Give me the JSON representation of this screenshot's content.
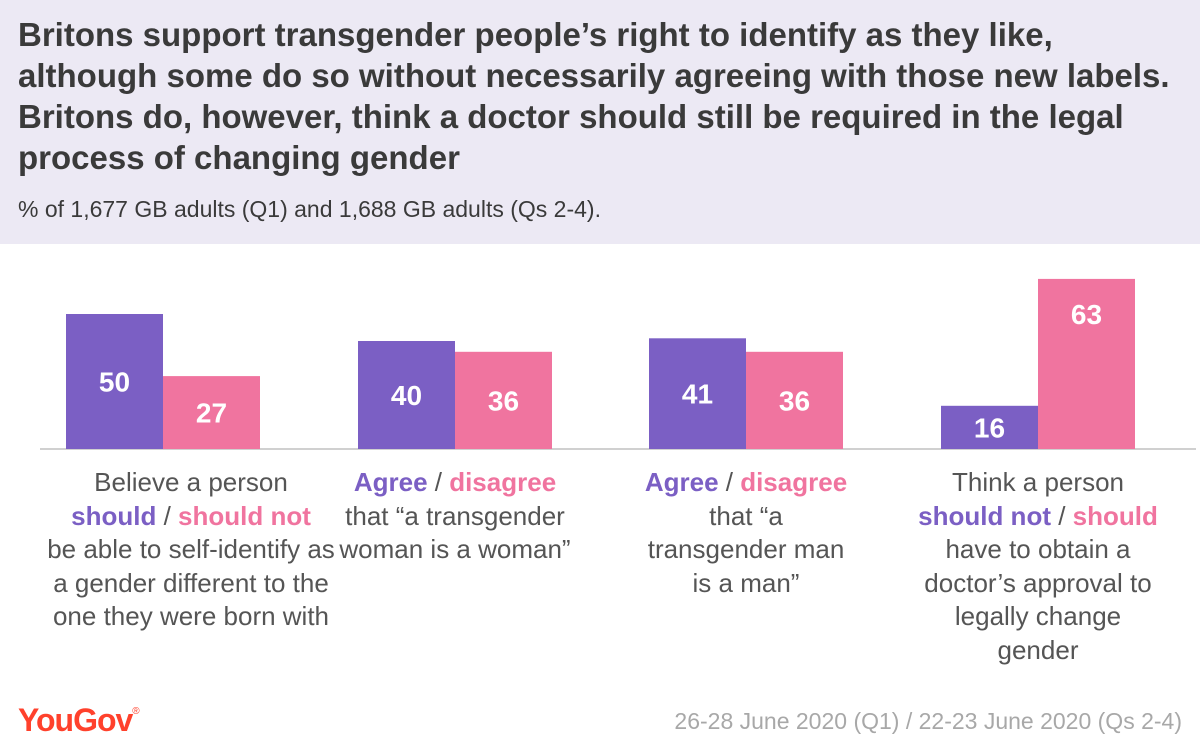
{
  "header": {
    "title": "Britons support transgender people’s right to identify as they like, although some do so without necessarily agreeing with those new labels. Britons do, however, think a doctor should still be required in the legal process of changing gender",
    "subtitle": "% of 1,677 GB adults (Q1) and 1,688 GB adults (Qs 2-4)."
  },
  "colors": {
    "purple": "#7b5fc4",
    "pink": "#f0749f",
    "header_bg": "#ece9f4"
  },
  "chart_data": {
    "type": "bar",
    "categories": [
      "Believe a person should / should not be able to self-identify as a gender different to the one they were born with",
      "Agree / disagree that “a transgender woman is a woman”",
      "Agree / disagree that “a transgender man is a man”",
      "Think a person should not / should have to obtain a doctor’s approval to legally change gender"
    ],
    "series": [
      {
        "values": [
          50,
          40,
          41,
          16
        ],
        "color": "#7b5fc4"
      },
      {
        "values": [
          27,
          36,
          36,
          63
        ],
        "color": "#f0749f"
      }
    ],
    "ylim": [
      0,
      63
    ],
    "grid": false
  },
  "captions": [
    {
      "pre": "Believe a person",
      "a": "should",
      "sep": " / ",
      "b": "should not",
      "post": "be able to self-identify as a gender different to the one they were born with"
    },
    {
      "pre": "",
      "a": "Agree",
      "sep": " / ",
      "b": "disagree",
      "post": "that “a transgender woman is a woman”"
    },
    {
      "pre": "",
      "a": "Agree",
      "sep": " / ",
      "b": "disagree",
      "post": "that “a transgender man is a man”"
    },
    {
      "pre": "Think a person",
      "a": "should not",
      "sep": " / ",
      "b": "should",
      "post": "have to obtain a doctor’s approval to legally change gender"
    }
  ],
  "footer": {
    "logo": "YouGov",
    "source": "26-28 June 2020 (Q1) / 22-23 June 2020 (Qs 2-4)"
  }
}
